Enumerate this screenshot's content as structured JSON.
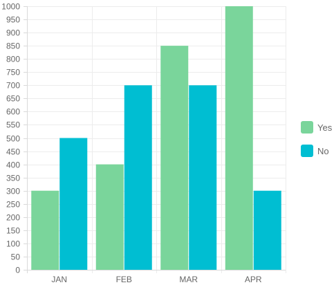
{
  "chart_data": {
    "type": "bar",
    "categories": [
      "JAN",
      "FEB",
      "MAR",
      "APR"
    ],
    "series": [
      {
        "name": "Yes",
        "values": [
          300,
          400,
          850,
          1000
        ],
        "color": "#7ad59b"
      },
      {
        "name": "No",
        "values": [
          500,
          700,
          700,
          300
        ],
        "color": "#00bed2"
      }
    ],
    "ylim": [
      0,
      1000
    ],
    "ytick_step": 50,
    "grid": true,
    "legend_position": "right",
    "title": "",
    "xlabel": "",
    "ylabel": ""
  },
  "legend_labels": [
    "Yes",
    "No"
  ]
}
